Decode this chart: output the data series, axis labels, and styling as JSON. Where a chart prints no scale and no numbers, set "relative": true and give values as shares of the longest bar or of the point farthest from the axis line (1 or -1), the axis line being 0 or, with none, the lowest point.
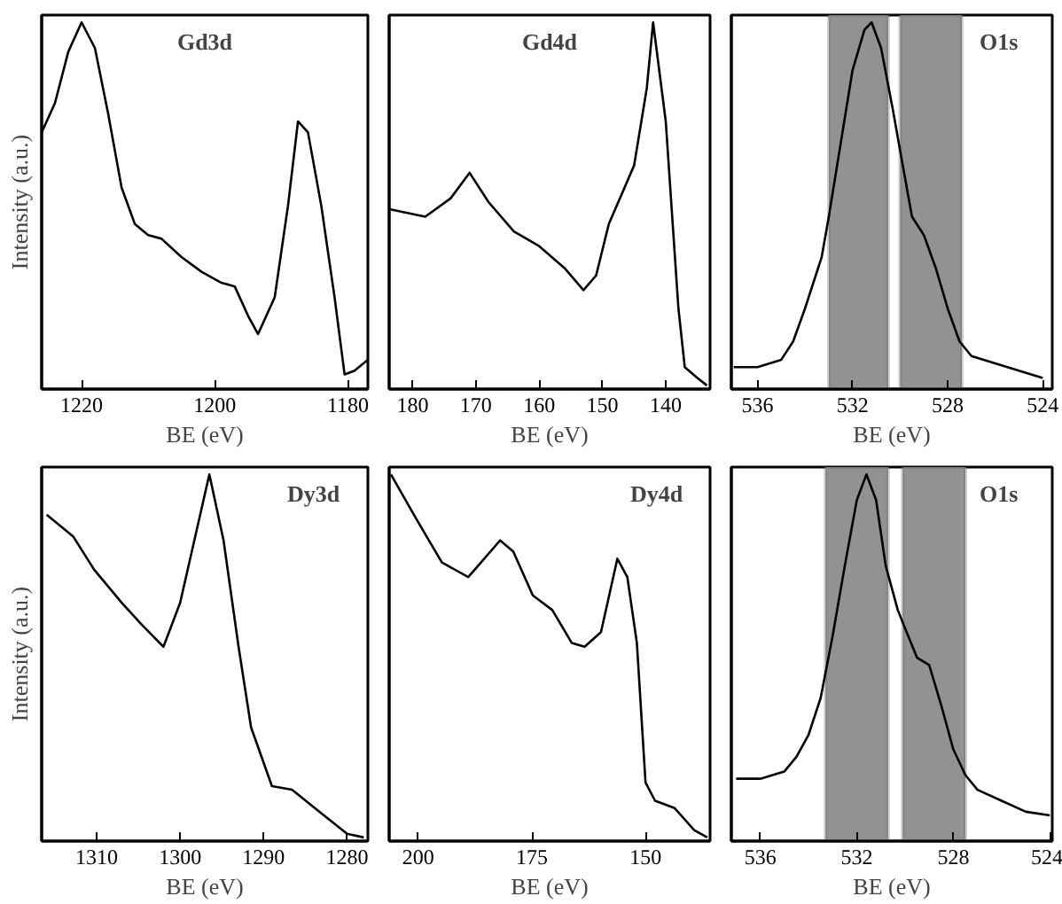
{
  "chart_data": [
    {
      "type": "line",
      "title": "Gd3d",
      "xlabel": "BE (eV)",
      "ylabel": "Intensity (a.u.)",
      "relative": true,
      "xlim": [
        1226,
        1177
      ],
      "xticks": [
        1220,
        1200,
        1180
      ],
      "grid": false,
      "tick_labels": "x",
      "series": [
        {
          "color": "#000000",
          "x": [
            1226,
            1224,
            1222,
            1220,
            1218,
            1216,
            1214,
            1212,
            1210,
            1208,
            1205,
            1202,
            1199,
            1197,
            1195,
            1193.5,
            1191,
            1189,
            1187.5,
            1186,
            1184,
            1182,
            1180.5,
            1179,
            1177
          ],
          "values": [
            0.7,
            0.78,
            0.92,
            1.0,
            0.93,
            0.75,
            0.55,
            0.45,
            0.42,
            0.41,
            0.36,
            0.32,
            0.29,
            0.28,
            0.2,
            0.15,
            0.25,
            0.5,
            0.73,
            0.7,
            0.5,
            0.25,
            0.04,
            0.05,
            0.08
          ]
        }
      ]
    },
    {
      "type": "line",
      "title": "Gd4d",
      "xlabel": "BE (eV)",
      "relative": true,
      "xlim": [
        183.7,
        133
      ],
      "xticks": [
        180,
        170,
        160,
        150,
        140
      ],
      "grid": false,
      "tick_labels": "x",
      "series": [
        {
          "color": "#000000",
          "x": [
            183.5,
            178,
            174,
            171,
            168,
            164,
            160,
            156,
            153,
            151,
            149,
            147,
            145,
            143,
            142,
            140,
            138,
            137,
            135,
            133.5
          ],
          "values": [
            0.49,
            0.47,
            0.52,
            0.59,
            0.51,
            0.43,
            0.39,
            0.33,
            0.27,
            0.31,
            0.45,
            0.53,
            0.61,
            0.82,
            1.0,
            0.73,
            0.22,
            0.06,
            0.03,
            0.01
          ]
        }
      ]
    },
    {
      "type": "line",
      "title": "O1s",
      "xlabel": "BE (eV)",
      "relative": true,
      "xlim": [
        537.1,
        523.6
      ],
      "xticks": [
        536,
        532,
        528,
        524
      ],
      "grid": false,
      "tick_labels": "x",
      "bands": [
        {
          "axis": "x",
          "from": 533,
          "to": 530.5,
          "color": "#8c8c8c"
        },
        {
          "axis": "x",
          "from": 530,
          "to": 527.4,
          "color": "#8c8c8c"
        }
      ],
      "series": [
        {
          "color": "#000000",
          "x": [
            537,
            536,
            535,
            534.5,
            534,
            533.3,
            533,
            532.5,
            532,
            531.5,
            531.2,
            530.8,
            530.3,
            530,
            529.5,
            529,
            528.5,
            528,
            527.5,
            527,
            526,
            525,
            524
          ],
          "values": [
            0.06,
            0.06,
            0.08,
            0.13,
            0.22,
            0.36,
            0.47,
            0.67,
            0.87,
            0.98,
            1.0,
            0.93,
            0.76,
            0.65,
            0.47,
            0.42,
            0.33,
            0.22,
            0.13,
            0.09,
            0.07,
            0.05,
            0.03
          ]
        }
      ]
    },
    {
      "type": "line",
      "title": "Dy3d",
      "xlabel": "BE (eV)",
      "ylabel": "Intensity (a.u.)",
      "relative": true,
      "xlim": [
        1316.6,
        1277.5
      ],
      "xticks": [
        1310,
        1300,
        1290,
        1280
      ],
      "grid": false,
      "tick_labels": "x",
      "series": [
        {
          "color": "#000000",
          "x": [
            1316,
            1312.8,
            1310.3,
            1307,
            1304.6,
            1302,
            1300,
            1298,
            1296.5,
            1294.8,
            1293,
            1291.5,
            1289,
            1286.6,
            1283.3,
            1280,
            1278
          ],
          "values": [
            0.89,
            0.83,
            0.74,
            0.65,
            0.59,
            0.53,
            0.65,
            0.85,
            1.0,
            0.82,
            0.53,
            0.31,
            0.15,
            0.14,
            0.08,
            0.02,
            0.01
          ]
        }
      ]
    },
    {
      "type": "line",
      "title": "Dy4d",
      "xlabel": "BE (eV)",
      "relative": true,
      "xlim": [
        206.4,
        135.8
      ],
      "xticks": [
        200,
        175,
        150
      ],
      "grid": false,
      "tick_labels": "x",
      "series": [
        {
          "color": "#000000",
          "x": [
            206,
            200.5,
            194.8,
            189,
            186.2,
            182,
            179.1,
            174.8,
            170.5,
            166.2,
            163.4,
            159.8,
            156.2,
            154,
            151.9,
            150,
            147.9,
            143.6,
            139.3,
            136.4
          ],
          "values": [
            1.0,
            0.88,
            0.76,
            0.72,
            0.76,
            0.82,
            0.79,
            0.67,
            0.63,
            0.54,
            0.53,
            0.57,
            0.77,
            0.72,
            0.54,
            0.16,
            0.11,
            0.09,
            0.03,
            0.01
          ]
        }
      ]
    },
    {
      "type": "line",
      "title": "O1s",
      "xlabel": "BE (eV)",
      "relative": true,
      "xlim": [
        537.2,
        523.9
      ],
      "xticks": [
        536,
        532,
        528,
        524
      ],
      "grid": false,
      "tick_labels": "x",
      "bands": [
        {
          "axis": "x",
          "from": 533.3,
          "to": 530.7,
          "color": "#8c8c8c"
        },
        {
          "axis": "x",
          "from": 530.1,
          "to": 527.5,
          "color": "#8c8c8c"
        }
      ],
      "series": [
        {
          "color": "#000000",
          "x": [
            537,
            536,
            535,
            534.5,
            534,
            533.5,
            533,
            532.5,
            532,
            531.6,
            531.2,
            530.8,
            530.3,
            530,
            529.5,
            529,
            528.5,
            528,
            527.5,
            527,
            526,
            525,
            524
          ],
          "values": [
            0.17,
            0.17,
            0.19,
            0.23,
            0.29,
            0.39,
            0.56,
            0.75,
            0.93,
            1.0,
            0.93,
            0.75,
            0.63,
            0.58,
            0.5,
            0.48,
            0.37,
            0.25,
            0.18,
            0.14,
            0.11,
            0.08,
            0.07
          ]
        }
      ]
    }
  ]
}
